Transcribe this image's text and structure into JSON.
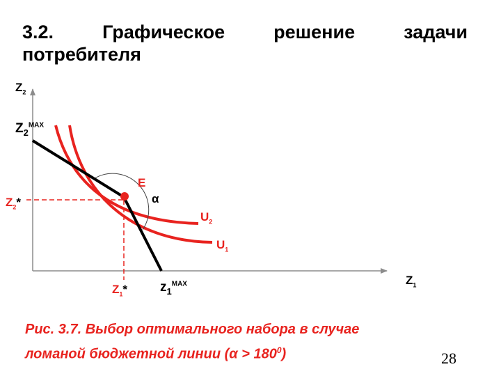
{
  "title": {
    "words": [
      "3.2.",
      "Графическое",
      "решение",
      "задачи"
    ],
    "line2": "потребителя"
  },
  "labels": {
    "z2_axis": "Z",
    "z2_axis_sub": "2",
    "z2_max": "Z",
    "z2_max_sub": "2",
    "z2_max_sup": "MAX",
    "z2_star": "Z",
    "z2_star_sub": "2",
    "z2_star_mark": "*",
    "e": "E",
    "alpha": "α",
    "u2": "U",
    "u2_sub": "2",
    "u1": "U",
    "u1_sub": "1",
    "z1_axis": "Z",
    "z1_axis_sub": "1",
    "z1_star": "Z",
    "z1_star_sub": "1",
    "z1_star_mark": "*",
    "z1_max": "z",
    "z1_max_sub": "1",
    "z1_max_sup": "MAX"
  },
  "caption": {
    "line1": "Рис. 3.7.  Выбор оптимального набора в случае",
    "line2": "ломаной бюджетной линии (α > 180",
    "sup": "0",
    "end": ")"
  },
  "page_number": "28",
  "colors": {
    "accent": "#e8231f",
    "line": "#000000"
  }
}
